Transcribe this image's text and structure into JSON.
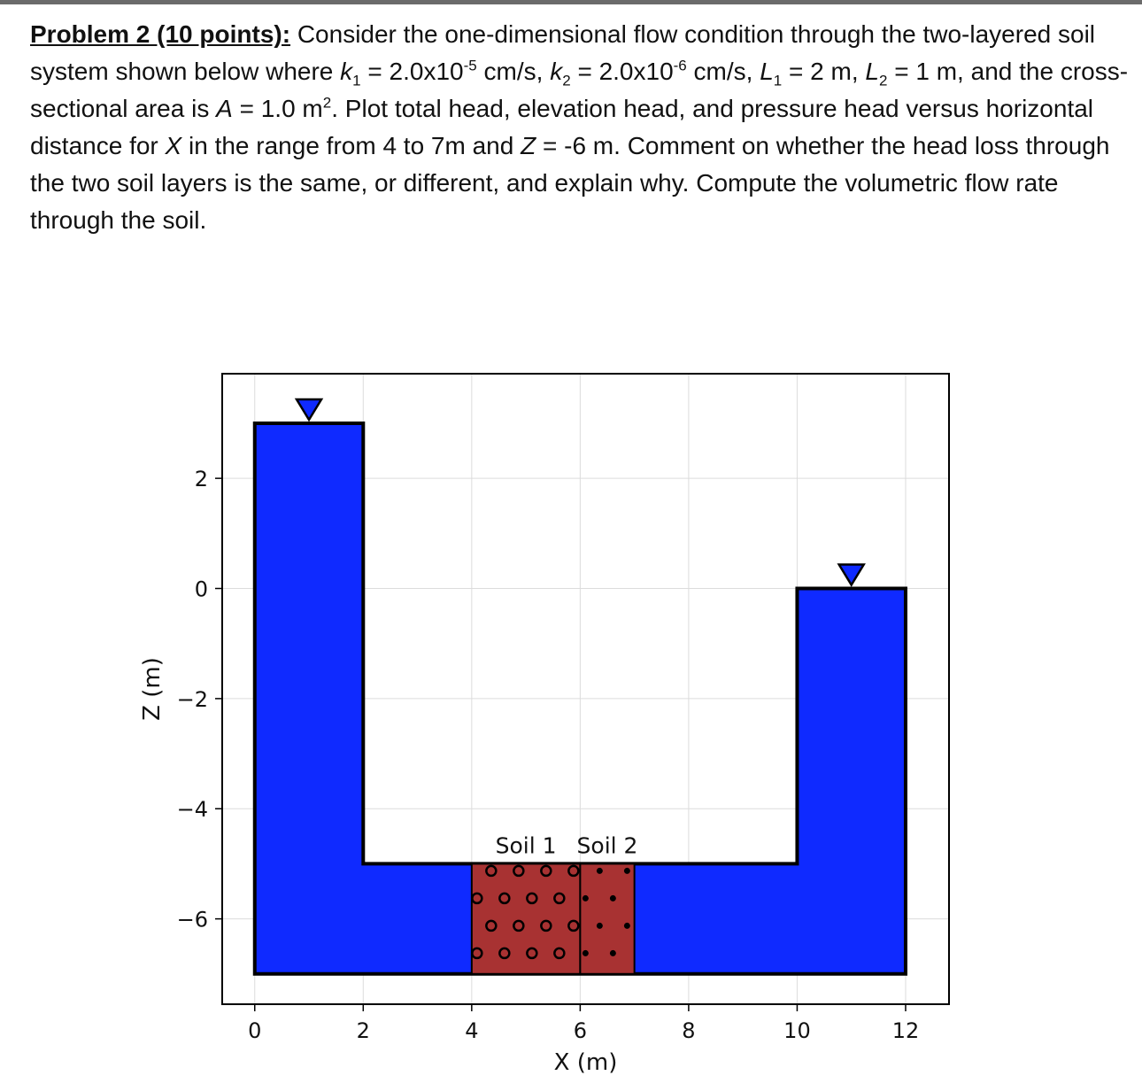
{
  "problem": {
    "heading": "Problem 2 (10 points):",
    "intro": "Consider the one-dimensional flow condition through the two-layered soil system shown below where",
    "k1": {
      "sym": "k",
      "sub": "1",
      "pre": "= 2.0x10",
      "exp": "-5",
      "unit": "cm/s,"
    },
    "k2": {
      "sym": "k",
      "sub": "2",
      "pre": "= 2.0x10",
      "exp": "-6",
      "unit": "cm/s,"
    },
    "L1": {
      "sym": "L",
      "sub": "1",
      "rest": "= 2 m,"
    },
    "L2": {
      "sym": "L",
      "sub": "2",
      "rest": "= 1 m, and"
    },
    "area_text": "the cross-sectional area is",
    "area_sym": "A",
    "area_value": "= 1.0 m",
    "area_exp": "2",
    "plot_text": ". Plot total head, elevation head, and pressure head versus horizontal distance for",
    "x_sym": "X",
    "range_text": "in the range from 4 to 7m and",
    "z_sym": "Z",
    "z_value": "= -6 m.",
    "rest": "Comment on whether the head loss through the two soil layers is the same, or different, and explain why. Compute the volumetric flow rate through the soil."
  },
  "chart_data": {
    "type": "diagram",
    "xlabel": "X (m)",
    "ylabel": "Z (m)",
    "xlim": [
      -0.6,
      12.8
    ],
    "ylim": [
      -7.55,
      3.9
    ],
    "xticks": [
      0,
      2,
      4,
      6,
      8,
      10,
      12
    ],
    "yticks": [
      -6,
      -4,
      -2,
      0,
      2
    ],
    "grid": true,
    "colors": {
      "water": "#0f2aff",
      "soil": "#a83232",
      "outline": "#000000",
      "grid": "#dcdcdc"
    },
    "water_region": [
      [
        0,
        3
      ],
      [
        2,
        3
      ],
      [
        2,
        -5
      ],
      [
        10,
        -5
      ],
      [
        10,
        0
      ],
      [
        12,
        0
      ],
      [
        12,
        -7
      ],
      [
        0,
        -7
      ]
    ],
    "water_levels": [
      {
        "x": 1,
        "z": 3
      },
      {
        "x": 11,
        "z": 0
      }
    ],
    "soils": [
      {
        "label": "Soil 1",
        "x": [
          4,
          6
        ],
        "z": [
          -7,
          -5
        ],
        "marker": "open-circle"
      },
      {
        "label": "Soil 2",
        "x": [
          6,
          7
        ],
        "z": [
          -7,
          -5
        ],
        "marker": "dot"
      }
    ]
  }
}
